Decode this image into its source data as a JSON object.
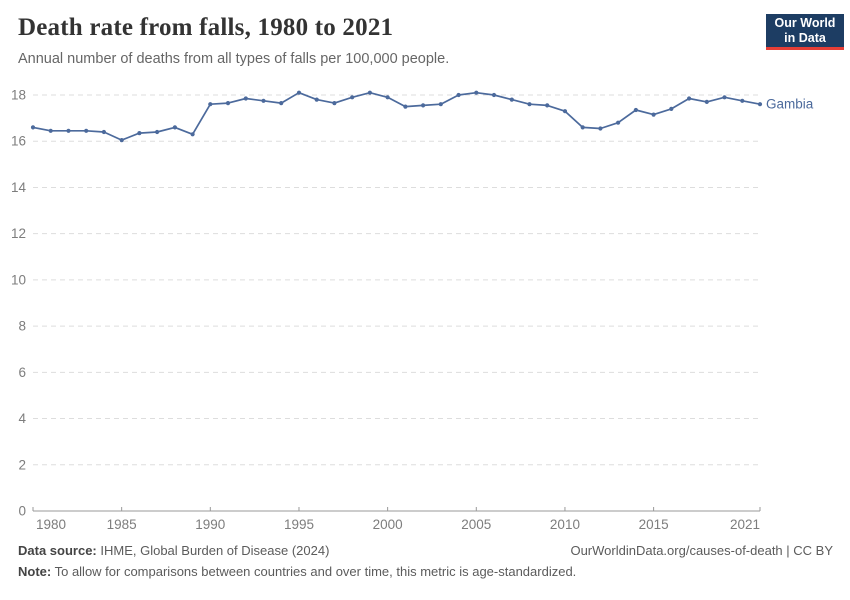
{
  "header": {
    "title": "Death rate from falls, 1980 to 2021",
    "subtitle": "Annual number of deaths from all types of falls per 100,000 people.",
    "logo": {
      "line1": "Our World",
      "line2": "in Data",
      "bg_color": "#1d3d63",
      "accent_color": "#e63e36"
    }
  },
  "chart_data": {
    "type": "line",
    "title": "Death rate from falls, 1980 to 2021",
    "subtitle": "Annual number of deaths from all types of falls per 100,000 people.",
    "xlabel": "",
    "ylabel": "",
    "xlim": [
      1980,
      2021
    ],
    "ylim": [
      0,
      18.6
    ],
    "grid": "horizontal-dashed",
    "legend_position": "end-of-line-label",
    "x_ticks": [
      1980,
      1985,
      1990,
      1995,
      2000,
      2005,
      2010,
      2015,
      2021
    ],
    "y_ticks": [
      0,
      2,
      4,
      6,
      8,
      10,
      12,
      14,
      16,
      18
    ],
    "x": [
      1980,
      1981,
      1982,
      1983,
      1984,
      1985,
      1986,
      1987,
      1988,
      1989,
      1990,
      1991,
      1992,
      1993,
      1994,
      1995,
      1996,
      1997,
      1998,
      1999,
      2000,
      2001,
      2002,
      2003,
      2004,
      2005,
      2006,
      2007,
      2008,
      2009,
      2010,
      2011,
      2012,
      2013,
      2014,
      2015,
      2016,
      2017,
      2018,
      2019,
      2020,
      2021
    ],
    "series": [
      {
        "name": "Gambia",
        "color": "#4c6a9c",
        "values": [
          16.6,
          16.45,
          16.45,
          16.45,
          16.4,
          16.05,
          16.35,
          16.4,
          16.6,
          16.3,
          17.6,
          17.65,
          17.85,
          17.75,
          17.65,
          18.1,
          17.8,
          17.65,
          17.9,
          18.1,
          17.9,
          17.5,
          17.55,
          17.6,
          18.0,
          18.1,
          18.0,
          17.8,
          17.6,
          17.55,
          17.3,
          16.6,
          16.55,
          16.8,
          17.35,
          17.15,
          17.4,
          17.85,
          17.7,
          17.9,
          17.75,
          17.6
        ]
      }
    ],
    "colors": {
      "gridline": "#dddddd",
      "axis": "#999999",
      "tick_label": "#7d7d7d"
    }
  },
  "footer": {
    "data_source_label": "Data source:",
    "data_source_text": " IHME, Global Burden of Disease (2024)",
    "link_text": "OurWorldinData.org/causes-of-death | CC BY",
    "note_label": "Note:",
    "note_text": " To allow for comparisons between countries and over time, this metric is age-standardized."
  }
}
